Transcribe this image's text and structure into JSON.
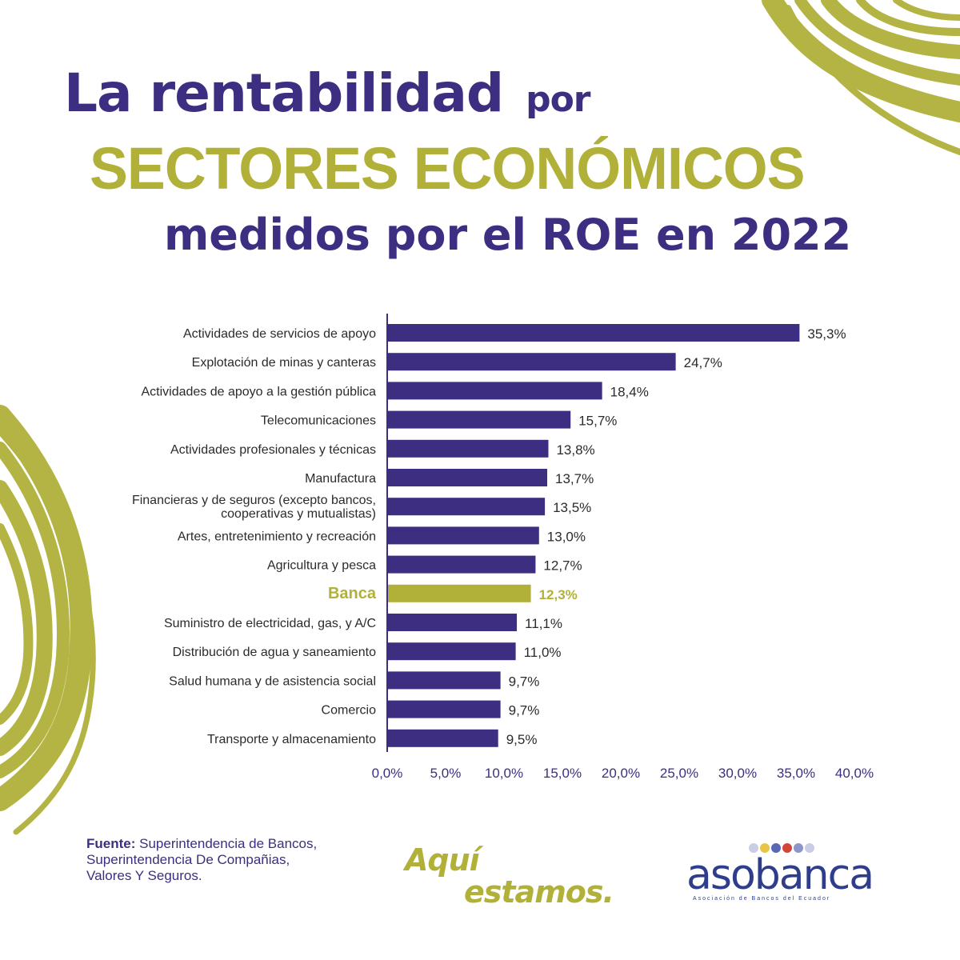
{
  "title": {
    "line1_big": "La rentabilidad",
    "line1_small": "por",
    "line2": "SECTORES ECONÓMICOS",
    "line3": "medidos por el ROE en 2022"
  },
  "colors": {
    "purple": "#3d2e82",
    "olive": "#b1b13a",
    "text": "#2b2b2b"
  },
  "chart_data": {
    "type": "bar",
    "orientation": "horizontal",
    "categories": [
      [
        "Actividades de servicios de apoyo"
      ],
      [
        "Explotación de minas y canteras"
      ],
      [
        "Actividades de apoyo a la gestión pública"
      ],
      [
        "Telecomunicaciones"
      ],
      [
        "Actividades profesionales y técnicas"
      ],
      [
        "Manufactura"
      ],
      [
        "Financieras y de seguros (excepto bancos,",
        "cooperativas y mutualistas)"
      ],
      [
        "Artes, entretenimiento y recreación"
      ],
      [
        "Agricultura y pesca"
      ],
      [
        "Banca"
      ],
      [
        "Suministro de electricidad, gas, y A/C"
      ],
      [
        "Distribución de agua y  saneamiento"
      ],
      [
        "Salud humana y de asistencia social"
      ],
      [
        "Comercio"
      ],
      [
        "Transporte y almacenamiento"
      ]
    ],
    "values": [
      35.3,
      24.7,
      18.4,
      15.7,
      13.8,
      13.7,
      13.5,
      13.0,
      12.7,
      12.3,
      11.1,
      11.0,
      9.7,
      9.7,
      9.5
    ],
    "value_labels": [
      "35,3%",
      "24,7%",
      "18,4%",
      "15,7%",
      "13,8%",
      "13,7%",
      "13,5%",
      "13,0%",
      "12,7%",
      "12,3%",
      "11,1%",
      "11,0%",
      "9,7%",
      "9,7%",
      "9,5%"
    ],
    "highlight": "Banca",
    "xlim": [
      0,
      40
    ],
    "xticks": [
      "0,0%",
      "5,0%",
      "10,0%",
      "15,0%",
      "20,0%",
      "25,0%",
      "30,0%",
      "35,0%",
      "40,0%"
    ],
    "xlabel": "",
    "ylabel": "",
    "grid": false
  },
  "source": {
    "label": "Fuente:",
    "text": " Superintendencia de Bancos, Superintendencia De Compañias, Valores Y Seguros."
  },
  "slogan": {
    "line1": "Aquí",
    "line2": "estamos."
  },
  "logo": {
    "word": "asobanca",
    "tagline": "Asociación de Bancos del Ecuador",
    "dot_colors": [
      "#c9cde6",
      "#e8c547",
      "#5a67b5",
      "#d2453b",
      "#8b95cc",
      "#c9cde6"
    ]
  }
}
